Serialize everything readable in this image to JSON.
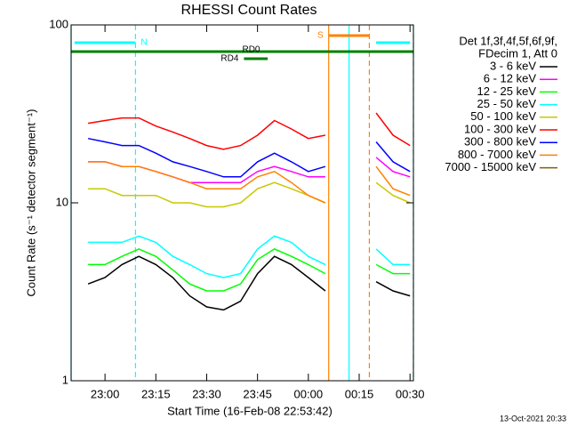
{
  "chart_data": {
    "type": "line",
    "title": "RHESSI Count Rates",
    "x_label": "Start Time (16-Feb-08 22:53:42)",
    "y_label": "Count Rate (s⁻¹ detector segment⁻¹)",
    "footer": "13-Oct-2021 20:33",
    "log_y": true,
    "legend_title": [
      "Det 1f,3f,4f,5f,6f,9f,",
      "FDecim 1, Att 0"
    ],
    "x": [
      "22:55",
      "23:00",
      "23:05",
      "23:10",
      "23:15",
      "23:20",
      "23:25",
      "23:30",
      "23:35",
      "23:40",
      "23:45",
      "23:50",
      "23:55",
      "00:00",
      "00:05",
      "00:10",
      "00:15",
      "00:20",
      "00:25",
      "00:30"
    ],
    "xlim": [
      "22:50",
      "00:31"
    ],
    "xticks": [
      "23:00",
      "23:15",
      "23:30",
      "23:45",
      "00:00",
      "00:15",
      "00:30"
    ],
    "ylim": [
      1,
      100
    ],
    "yticks": [
      1,
      10,
      100
    ],
    "series": [
      {
        "name": "3 - 6 keV",
        "color": "#000000",
        "values": [
          3.5,
          3.8,
          4.5,
          5,
          4.5,
          3.8,
          3,
          2.6,
          2.5,
          2.8,
          4,
          5,
          4.5,
          3.8,
          3.2,
          null,
          null,
          3.6,
          3.2,
          3
        ]
      },
      {
        "name": "6 - 12 keV",
        "color": "#ff00ff",
        "values": [
          17,
          17,
          16,
          16,
          15,
          14,
          13,
          13,
          13,
          13,
          15,
          16,
          15,
          14,
          14,
          null,
          null,
          18,
          15,
          14
        ]
      },
      {
        "name": "12 - 25 keV",
        "color": "#00ff00",
        "values": [
          4.5,
          4.5,
          5,
          5.5,
          5,
          4.2,
          3.5,
          3.2,
          3.2,
          3.5,
          4.8,
          5.5,
          5,
          4.5,
          4,
          null,
          null,
          4.5,
          4,
          4
        ]
      },
      {
        "name": "25 - 50 keV",
        "color": "#00ffff",
        "values": [
          6,
          6,
          6,
          6.5,
          6,
          5,
          4.5,
          4,
          3.8,
          4,
          5.5,
          6.5,
          6,
          5,
          4.5,
          null,
          null,
          5.5,
          4.5,
          4.5
        ]
      },
      {
        "name": "50 - 100 keV",
        "color": "#c8c800",
        "values": [
          12,
          12,
          11,
          11,
          11,
          10,
          10,
          9.5,
          9.5,
          10,
          12,
          13,
          12,
          11,
          10,
          null,
          null,
          13,
          11,
          10
        ]
      },
      {
        "name": "100 - 300 keV",
        "color": "#ff0000",
        "values": [
          28,
          29,
          30,
          30,
          27,
          25,
          23,
          21,
          20,
          21,
          24,
          29,
          26,
          23,
          24,
          null,
          null,
          32,
          24,
          21
        ]
      },
      {
        "name": "300 - 800 keV",
        "color": "#0000ff",
        "values": [
          23,
          22,
          21,
          21,
          19,
          17,
          16,
          15,
          14,
          14,
          17,
          19,
          17,
          15,
          16,
          null,
          null,
          22,
          17,
          15
        ]
      },
      {
        "name": "800 - 7000 keV",
        "color": "#ff8000",
        "values": [
          17,
          17,
          16,
          16,
          15,
          14,
          13,
          12,
          12,
          12,
          14,
          15,
          13,
          11,
          10,
          null,
          null,
          16,
          12,
          11
        ]
      },
      {
        "name": "7000 - 15000 keV",
        "color": "#806000",
        "values": [
          null,
          null,
          null,
          null,
          null,
          null,
          null,
          null,
          null,
          null,
          null,
          null,
          null,
          null,
          null,
          null,
          null,
          null,
          null,
          null
        ]
      }
    ],
    "markers": [
      {
        "x": "22:50",
        "color": "#00ffff",
        "dashed": false
      },
      {
        "x": "23:09",
        "color": "#00ffff",
        "dashed": true
      },
      {
        "x": "00:06",
        "color": "#ff8000",
        "dashed": false
      },
      {
        "x": "00:12",
        "color": "#00ffff",
        "dashed": false
      },
      {
        "x": "00:18",
        "color": "#ff8000",
        "dashed": true
      },
      {
        "x": "00:31",
        "color": "#00ffff",
        "dashed": true
      }
    ],
    "flags": [
      {
        "label": "N",
        "color": "#00ffff",
        "row": 1,
        "spans": [
          [
            "22:51",
            "23:09"
          ],
          [
            "00:20",
            "00:30"
          ]
        ]
      },
      {
        "label": "S",
        "color": "#ff8000",
        "row": 0,
        "spans": [
          [
            "00:06",
            "00:18"
          ]
        ]
      },
      {
        "label": "RD0",
        "color": "#008000",
        "row": 2,
        "spans": [
          [
            "22:50",
            "00:31"
          ]
        ]
      },
      {
        "label": "RD4",
        "color": "#008000",
        "row": 3,
        "spans": [
          [
            "23:41",
            "23:48"
          ]
        ]
      }
    ]
  }
}
